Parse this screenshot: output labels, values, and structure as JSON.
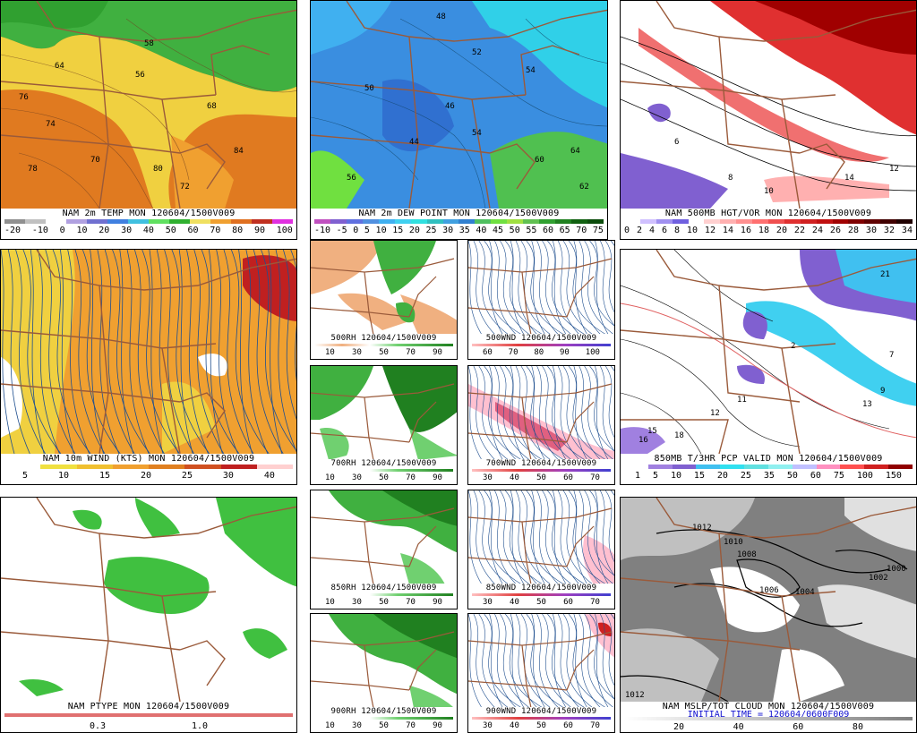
{
  "colors": {
    "state_lines": "#9a5a3a",
    "border": "#000000",
    "streamline": "#1f4f8f",
    "init_time": "#1010d0"
  },
  "panels": {
    "temp": {
      "caption": "NAM 2m TEMP MON 120604/1500V009",
      "ticks": [
        "-20",
        "-10",
        "0",
        "10",
        "20",
        "30",
        "40",
        "50",
        "60",
        "70",
        "80",
        "90",
        "100"
      ],
      "colors": [
        "#909090",
        "#c0c0c0",
        "#ffffff",
        "#b0a0e0",
        "#7070d0",
        "#4080e0",
        "#40c0e0",
        "#60e060",
        "#30b030",
        "#f0e060",
        "#f0a030",
        "#e07020",
        "#c03020",
        "#e030e0"
      ]
    },
    "dew": {
      "caption": "NAM 2m DEW POINT MON 120604/1500V009",
      "ticks": [
        "-10",
        "-5",
        "0",
        "5",
        "10",
        "15",
        "20",
        "25",
        "30",
        "35",
        "40",
        "45",
        "50",
        "55",
        "60",
        "65",
        "70",
        "75"
      ],
      "colors": [
        "#c050c0",
        "#8060d0",
        "#6070e0",
        "#5090e0",
        "#40b0f0",
        "#40d0f0",
        "#30e0e0",
        "#30c0c0",
        "#40a0e0",
        "#3080d0",
        "#50c060",
        "#70e040",
        "#a0e040",
        "#60c050",
        "#30a030",
        "#208020",
        "#106010",
        "#0c4c0c"
      ]
    },
    "vort": {
      "caption": "NAM 500MB HGT/VOR MON 120604/1500V009",
      "ticks": [
        "0",
        "2",
        "4",
        "6",
        "8",
        "10",
        "12",
        "14",
        "16",
        "18",
        "20",
        "22",
        "24",
        "26",
        "28",
        "30",
        "32",
        "34"
      ],
      "colors": [
        "#ffffff",
        "#d0c0ff",
        "#a090f0",
        "#7060e0",
        "#ffffff",
        "#ffd0d0",
        "#ffb0b0",
        "#ff9090",
        "#ff7070",
        "#f05050",
        "#e03030",
        "#d02020",
        "#c01010",
        "#a00000",
        "#800000",
        "#600000",
        "#400000",
        "#200000"
      ]
    },
    "wind": {
      "caption": "NAM 10m WIND (KTS) MON 120604/1500V009",
      "ticks": [
        "5",
        "10",
        "15",
        "20",
        "25",
        "30",
        "40"
      ],
      "colors": [
        "#ffffff",
        "#f0e040",
        "#f0c030",
        "#f0a030",
        "#e08020",
        "#d05020",
        "#c02020",
        "#ffd0d0"
      ]
    },
    "rh500": {
      "caption": "500RH 120604/1500V009",
      "ticks": [
        "10",
        "30",
        "50",
        "70",
        "90"
      ]
    },
    "wnd500": {
      "caption": "500WND 120604/1500V009",
      "ticks": [
        "60",
        "70",
        "80",
        "90",
        "100"
      ]
    },
    "rh700": {
      "caption": "700RH 120604/1500V009",
      "ticks": [
        "10",
        "30",
        "50",
        "70",
        "90"
      ]
    },
    "wnd700": {
      "caption": "700WND 120604/1500V009",
      "ticks": [
        "30",
        "40",
        "50",
        "60",
        "70"
      ]
    },
    "rh850": {
      "caption": "850RH 120604/1500V009",
      "ticks": [
        "10",
        "30",
        "50",
        "70",
        "90"
      ]
    },
    "wnd850": {
      "caption": "850WND 120604/1500V009",
      "ticks": [
        "30",
        "40",
        "50",
        "60",
        "70"
      ]
    },
    "rh900": {
      "caption": "900RH 120604/1500V009",
      "ticks": [
        "10",
        "30",
        "50",
        "70",
        "90"
      ]
    },
    "wnd900": {
      "caption": "900WND 120604/1500V009",
      "ticks": [
        "30",
        "40",
        "50",
        "60",
        "70"
      ]
    },
    "t850": {
      "caption": "850MB T/3HR PCP VALID MON 120604/1500V009",
      "ticks": [
        "1",
        "5",
        "10",
        "15",
        "20",
        "25",
        "35",
        "50",
        "60",
        "75",
        "100",
        "150"
      ],
      "colors": [
        "#ffffff",
        "#a080e0",
        "#8060d0",
        "#40c0f0",
        "#30e0f0",
        "#60e0e0",
        "#90f0f0",
        "#c0c0ff",
        "#ff90c0",
        "#ff5050",
        "#d02020",
        "#900000"
      ]
    },
    "ptype": {
      "caption": "NAM PTYPE MON 120604/1500V009",
      "ticks": [
        "0.3",
        "1.0"
      ]
    },
    "mslp": {
      "caption": "NAM MSLP/TOT CLOUD MON 120604/1500V009",
      "init": "INITIAL TIME = 120604/0600F009",
      "ticks": [
        "20",
        "40",
        "60",
        "80"
      ]
    }
  },
  "labels": {
    "temp": [
      "58",
      "56",
      "68",
      "76",
      "74",
      "70",
      "80",
      "78",
      "84",
      "64",
      "72"
    ],
    "dew": [
      "48",
      "52",
      "54",
      "50",
      "44",
      "46",
      "54",
      "60",
      "64",
      "56",
      "62"
    ],
    "vort": [
      "6",
      "10",
      "14",
      "12",
      "8"
    ],
    "t850": [
      "12",
      "11",
      "15",
      "16",
      "18",
      "2",
      "7",
      "9",
      "13",
      "21"
    ],
    "mslp": [
      "1012",
      "1010",
      "1008",
      "1006",
      "1004",
      "1000",
      "1002",
      "1012"
    ]
  }
}
